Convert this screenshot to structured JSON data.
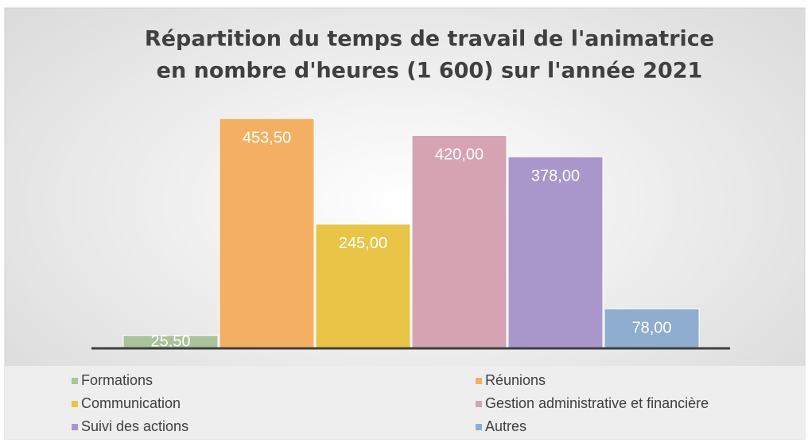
{
  "chart_data": {
    "type": "bar",
    "title": [
      "Répartition du temps de travail de l'animatrice",
      "en nombre d'heures (1 600) sur l'année 2021"
    ],
    "series": [
      {
        "name": "Formations",
        "color": "#a9c49a",
        "values": [
          25.5
        ],
        "value_labels": [
          "25,50"
        ]
      },
      {
        "name": "Réunions",
        "color": "#f4b062",
        "values": [
          453.5
        ],
        "value_labels": [
          "453,50"
        ]
      },
      {
        "name": "Communication",
        "color": "#e8c547",
        "values": [
          245
        ],
        "value_labels": [
          "245,00"
        ]
      },
      {
        "name": "Gestion administrative et financière",
        "color": "#d6a3b3",
        "values": [
          420
        ],
        "value_labels": [
          "420,00"
        ]
      },
      {
        "name": "Suivi des actions",
        "color": "#a997cc",
        "values": [
          378
        ],
        "value_labels": [
          "378,00"
        ]
      },
      {
        "name": "Autres",
        "color": "#8eadcf",
        "values": [
          78
        ],
        "value_labels": [
          "78,00"
        ]
      }
    ],
    "legend": "bottom"
  }
}
